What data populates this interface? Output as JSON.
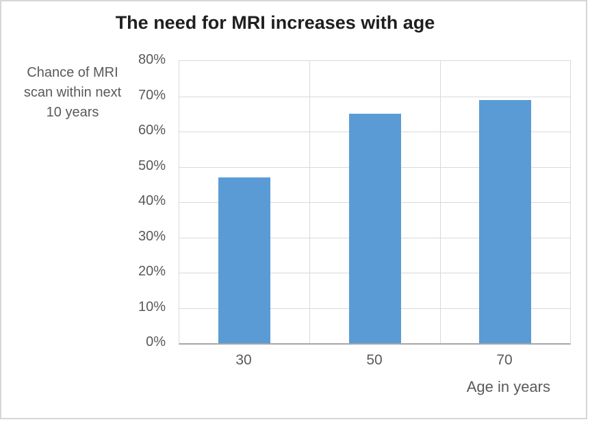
{
  "window": {
    "background": "#FFFFFF",
    "border_color": "#D6D6D6"
  },
  "chart_data": {
    "type": "bar",
    "title": "The need for MRI increases with age",
    "categories": [
      "30",
      "50",
      "70"
    ],
    "values": [
      47,
      65,
      69
    ],
    "xlabel": "Age in years",
    "ylabel": "Chance of MRI scan within next 10 years",
    "ylabel_lines": [
      "Chance of MRI",
      "scan within next",
      "10 years"
    ],
    "ylim": [
      0,
      80
    ],
    "ytick_step": 10,
    "yticks": [
      "0%",
      "10%",
      "20%",
      "30%",
      "40%",
      "50%",
      "60%",
      "70%",
      "80%"
    ],
    "grid": true,
    "legend": "none",
    "colors": {
      "bar": "#5B9BD5",
      "gridline": "#D9D9D9",
      "axis_line": "#A6A6A6",
      "tick_text": "#595959",
      "title_text": "#1F1F1F"
    }
  }
}
